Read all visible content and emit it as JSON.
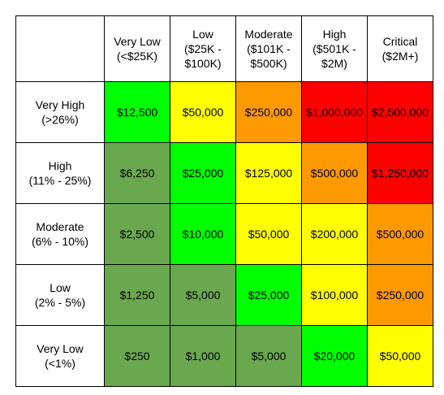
{
  "columns": [
    {
      "line1": "Very Low",
      "line2": "(<$25K)",
      "line3": ""
    },
    {
      "line1": "Low",
      "line2": "($25K -",
      "line3": "$100K)"
    },
    {
      "line1": "Moderate",
      "line2": "($101K -",
      "line3": "$500K)"
    },
    {
      "line1": "High",
      "line2": "($501K -",
      "line3": "$2M)"
    },
    {
      "line1": "Critical",
      "line2": "($2M+)",
      "line3": ""
    }
  ],
  "rows": [
    {
      "line1": "Very High",
      "line2": "(>26%)",
      "cells": [
        "$12,500",
        "$50,000",
        "$250,000",
        "$1,000,000",
        "$2,500,000"
      ],
      "colors": [
        "#00ff00",
        "#ffff00",
        "#ff9900",
        "#ff0000",
        "#ff0000"
      ]
    },
    {
      "line1": "High",
      "line2": "(11% - 25%)",
      "cells": [
        "$6,250",
        "$25,000",
        "$125,000",
        "$500,000",
        "$1,250,000"
      ],
      "colors": [
        "#6aa84f",
        "#00ff00",
        "#ffff00",
        "#ff9900",
        "#ff0000"
      ]
    },
    {
      "line1": "Moderate",
      "line2": "(6% - 10%)",
      "cells": [
        "$2,500",
        "$10,000",
        "$50,000",
        "$200,000",
        "$500,000"
      ],
      "colors": [
        "#6aa84f",
        "#00ff00",
        "#ffff00",
        "#ffff00",
        "#ff9900"
      ]
    },
    {
      "line1": "Low",
      "line2": "(2% - 5%)",
      "cells": [
        "$1,250",
        "$5,000",
        "$25,000",
        "$100,000",
        "$250,000"
      ],
      "colors": [
        "#6aa84f",
        "#6aa84f",
        "#00ff00",
        "#ffff00",
        "#ff9900"
      ]
    },
    {
      "line1": "Very Low",
      "line2": "(<1%)",
      "cells": [
        "$250",
        "$1,000",
        "$5,000",
        "$20,000",
        "$50,000"
      ],
      "colors": [
        "#6aa84f",
        "#6aa84f",
        "#6aa84f",
        "#00ff00",
        "#ffff00"
      ]
    }
  ]
}
